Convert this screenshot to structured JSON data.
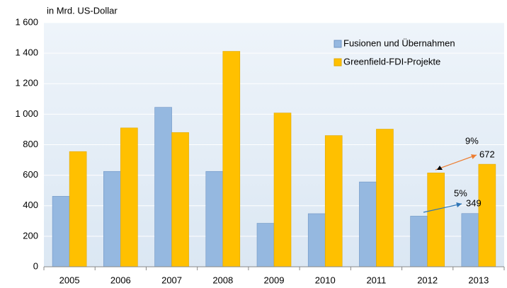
{
  "chart_data": {
    "type": "bar",
    "y_label": "in Mrd. US-Dollar",
    "categories": [
      "2005",
      "2006",
      "2007",
      "2008",
      "2009",
      "2010",
      "2011",
      "2012",
      "2013"
    ],
    "series": [
      {
        "name": "Fusionen und Übernahmen",
        "color": "#95b8e0",
        "values": [
          462,
          625,
          1045,
          625,
          285,
          348,
          556,
          332,
          349
        ]
      },
      {
        "name": "Greenfield-FDI-Projekte",
        "color": "#ffc000",
        "values": [
          755,
          910,
          880,
          1412,
          1008,
          860,
          902,
          615,
          672
        ]
      }
    ],
    "annotations": [
      {
        "text": "5%",
        "color": "#2e75b6"
      },
      {
        "text": "9%",
        "color": "#ed7d31"
      }
    ],
    "ylim": [
      0,
      1600
    ],
    "yticks": [
      0,
      200,
      400,
      600,
      800,
      {
        "value": 1000,
        "label": "1 000"
      },
      {
        "value": 1200,
        "label": "1 200"
      },
      {
        "value": 1400,
        "label": "1 400"
      },
      {
        "value": 1600,
        "label": "1 600"
      }
    ],
    "grid": true
  }
}
